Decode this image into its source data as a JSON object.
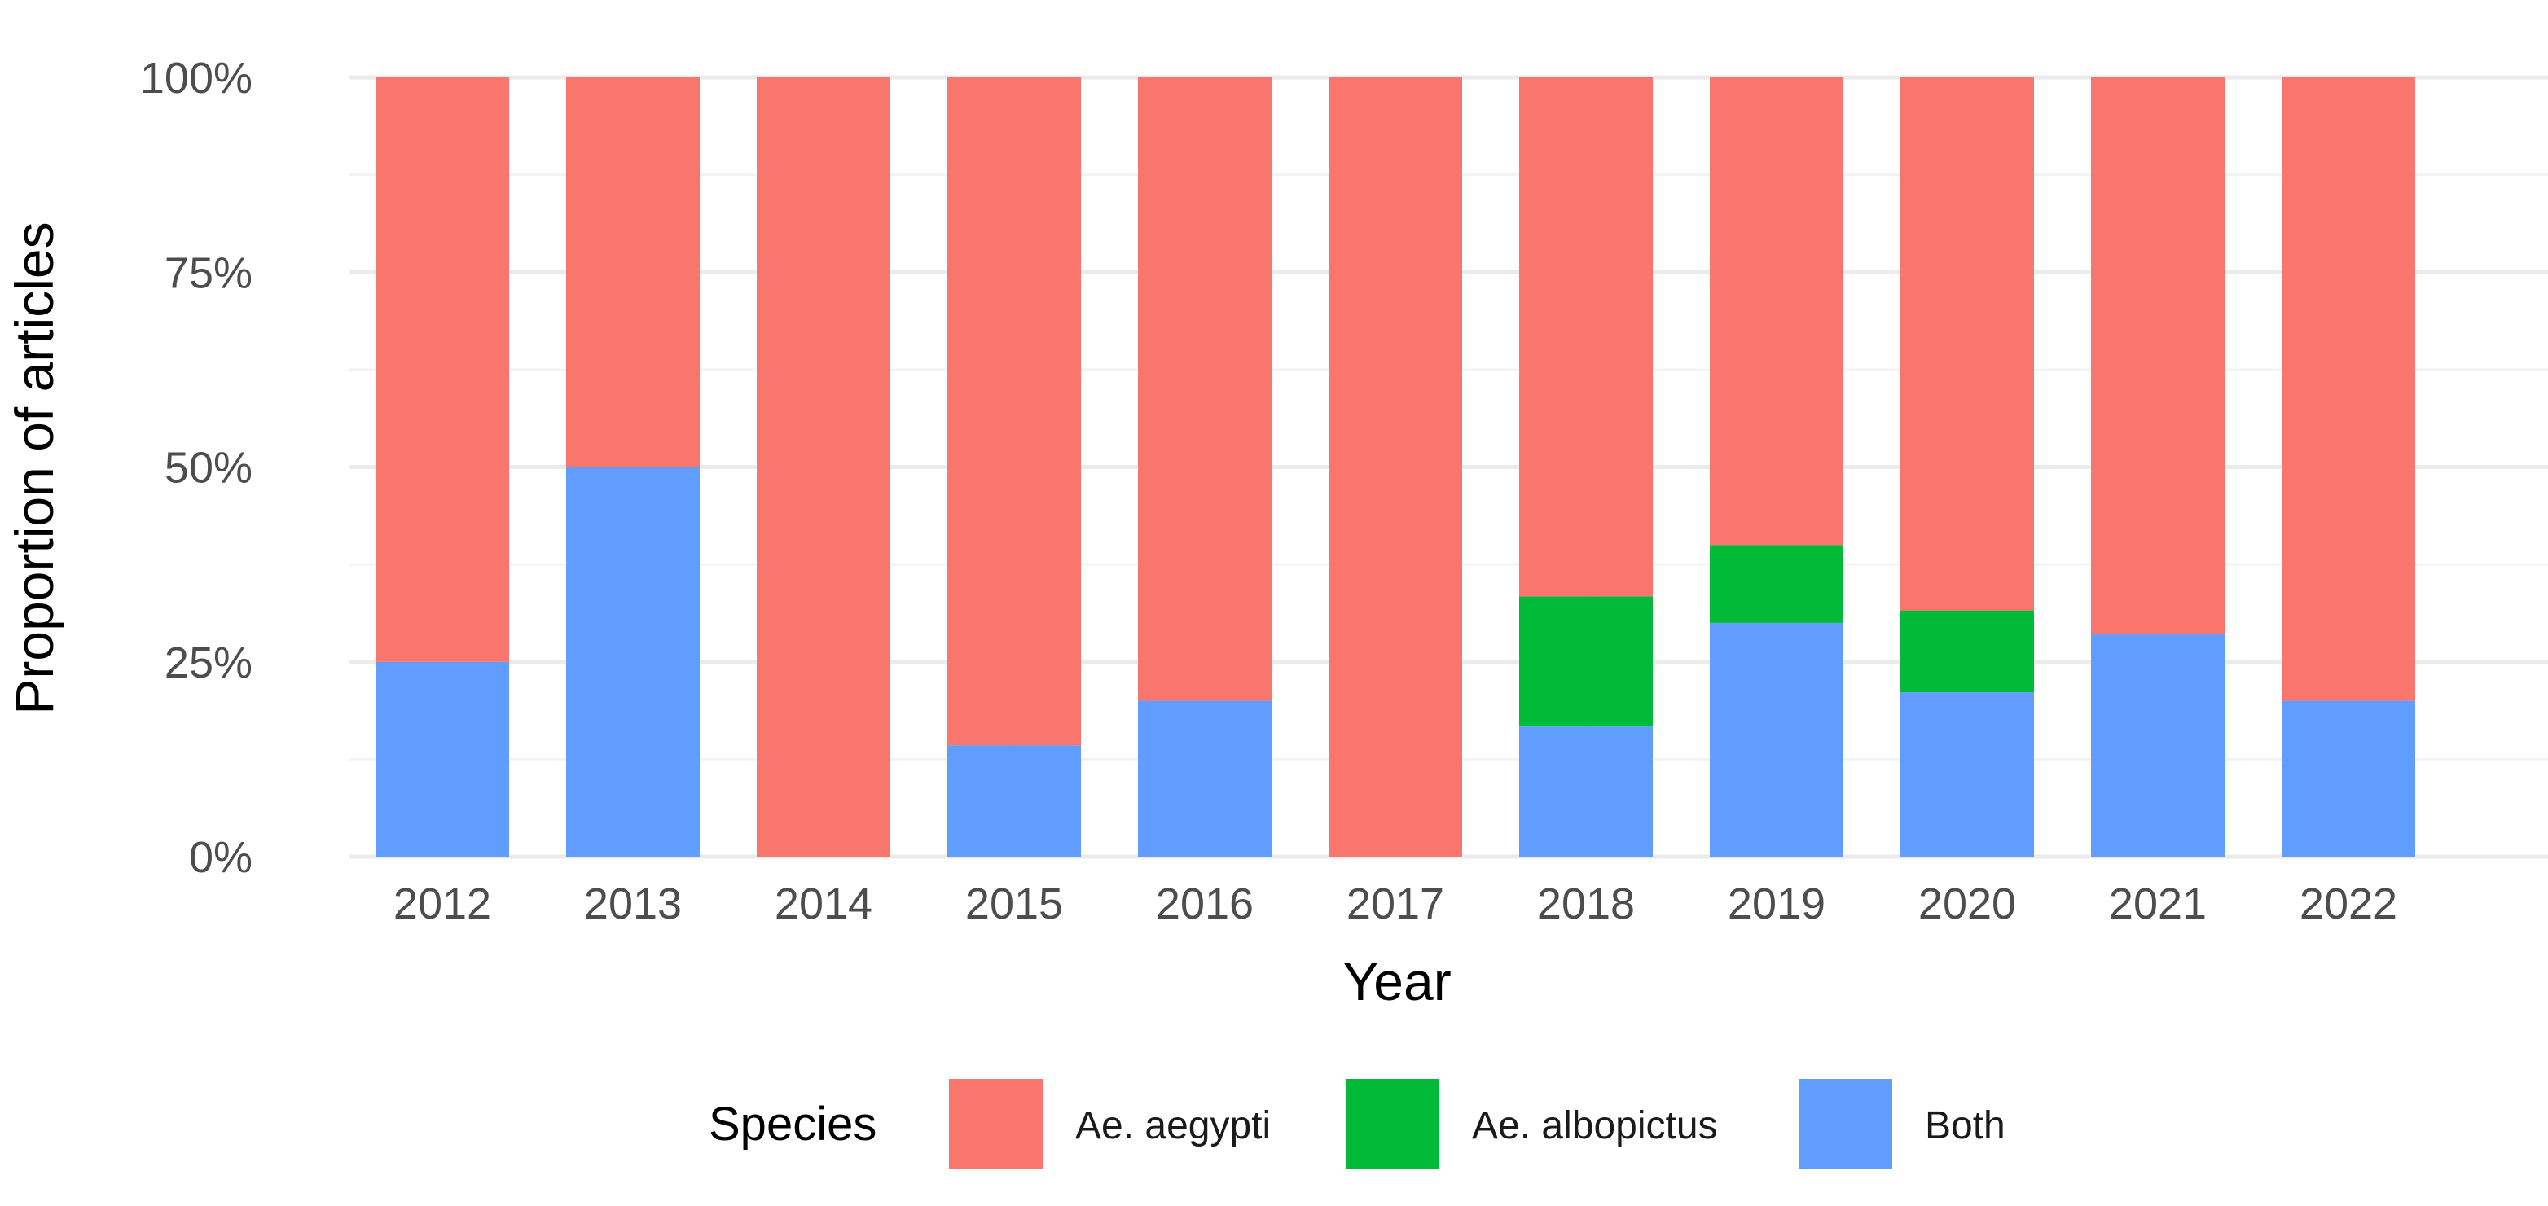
{
  "chart_data": {
    "type": "bar",
    "stacked": true,
    "title": "",
    "xlabel": "Year",
    "ylabel": "Proportion of articles",
    "ylim": [
      0,
      100
    ],
    "y_ticks": [
      "0%",
      "25%",
      "50%",
      "75%",
      "100%"
    ],
    "y_tick_values": [
      0,
      25,
      50,
      75,
      100
    ],
    "grid": true,
    "legend_position": "bottom",
    "legend_title": "Species",
    "categories": [
      "2012",
      "2013",
      "2014",
      "2015",
      "2016",
      "2017",
      "2018",
      "2019",
      "2020",
      "2021",
      "2022"
    ],
    "series": [
      {
        "name": "Ae. aegypti",
        "color": "#F8766D",
        "values": [
          75,
          50,
          100,
          85.7,
          80,
          100,
          66.7,
          60,
          68.4,
          71.4,
          80
        ]
      },
      {
        "name": "Ae. albopictus",
        "color": "#00BA38",
        "values": [
          0,
          0,
          0,
          0,
          0,
          0,
          16.7,
          10,
          10.5,
          0,
          0
        ]
      },
      {
        "name": "Both",
        "color": "#619CFF",
        "values": [
          25,
          50,
          0,
          14.3,
          20,
          0,
          16.7,
          30,
          21.1,
          28.6,
          20
        ]
      }
    ]
  }
}
